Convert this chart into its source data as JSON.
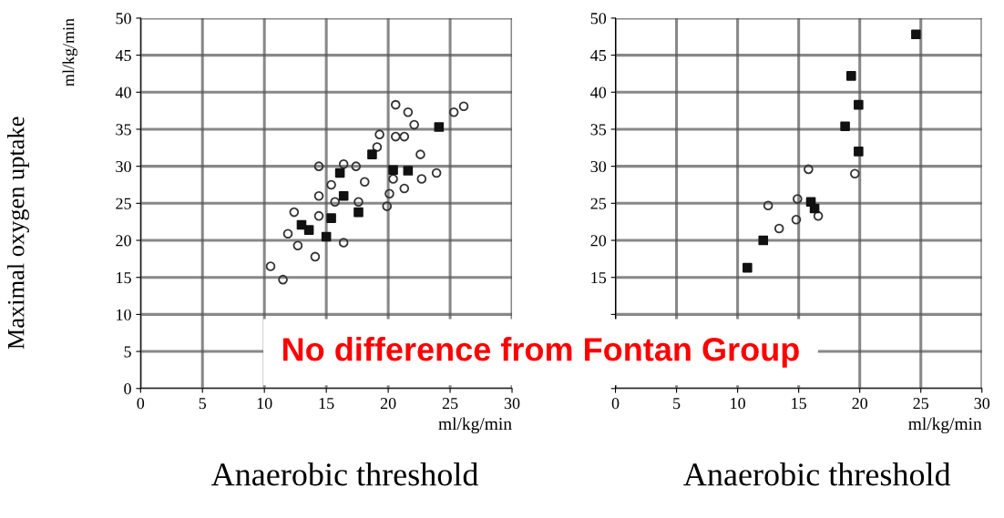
{
  "chart_data": [
    {
      "type": "scatter",
      "ylabel": "Maximal oxygen uptake",
      "xlabel": "ml/kg/min",
      "annotations": [
        "Anaerobic threshold",
        "ml/kg/min"
      ],
      "xlim": [
        0,
        30
      ],
      "xticks": [
        0,
        5,
        10,
        15,
        20,
        25,
        30
      ],
      "ylim": [
        0,
        50
      ],
      "yticks": [
        0,
        5,
        10,
        15,
        20,
        25,
        30,
        35,
        40,
        45,
        50
      ],
      "grid": true,
      "series": [
        {
          "marker": "circle",
          "color": "#333333",
          "x": [
            20.6,
            21.6,
            26.1,
            25.3,
            22.1,
            19.3,
            20.6,
            21.3,
            22.6,
            19.1,
            14.4,
            16.4,
            23.9,
            22.7,
            20.4,
            20.1,
            18.1,
            14.4,
            15.7,
            17.6,
            12.4,
            14.4,
            19.9,
            11.9,
            12.7,
            14.1,
            16.4,
            10.5,
            11.5,
            15.4,
            17.4,
            21.3
          ],
          "values": [
            38.3,
            37.3,
            38.1,
            37.3,
            35.6,
            34.3,
            34.0,
            34.0,
            31.6,
            32.6,
            30.0,
            30.3,
            29.1,
            28.3,
            28.3,
            26.3,
            27.9,
            26.0,
            25.2,
            25.2,
            23.8,
            23.3,
            24.6,
            20.9,
            19.3,
            17.8,
            19.7,
            16.5,
            14.7,
            27.5,
            30.0,
            27.0
          ]
        },
        {
          "marker": "square",
          "color": "#111111",
          "x": [
            24.1,
            18.7,
            21.6,
            16.1,
            16.4,
            17.6,
            13.6,
            15.0,
            15.4,
            13.0,
            20.4
          ],
          "values": [
            35.3,
            31.6,
            29.4,
            29.1,
            26.0,
            23.8,
            21.4,
            20.5,
            23.0,
            22.1,
            29.5
          ]
        }
      ]
    },
    {
      "type": "scatter",
      "xlabel": "ml/kg/min",
      "annotations": [
        "Anaerobic threshold",
        "No difference from Fontan Group"
      ],
      "xlim": [
        0,
        30
      ],
      "xticks": [
        0,
        5,
        10,
        15,
        20,
        25,
        30
      ],
      "ylim": [
        0,
        50
      ],
      "yticks": [
        {
          "value": 0,
          "label": null
        },
        {
          "value": 5,
          "label": null
        },
        {
          "value": 10,
          "label": null
        },
        15,
        20,
        25,
        30,
        35,
        40,
        45,
        50
      ],
      "grid": true,
      "series": [
        {
          "marker": "circle",
          "color": "#333333",
          "x": [
            15.8,
            19.6,
            12.5,
            14.9,
            14.8,
            13.4,
            16.6
          ],
          "values": [
            29.6,
            29.0,
            24.7,
            25.6,
            22.8,
            21.6,
            23.3
          ]
        },
        {
          "marker": "square",
          "color": "#111111",
          "x": [
            24.6,
            19.3,
            19.9,
            18.8,
            19.9,
            16.0,
            16.3,
            12.1,
            10.8
          ],
          "values": [
            47.8,
            42.2,
            38.3,
            35.4,
            32.0,
            25.2,
            24.3,
            20.0,
            16.3
          ]
        }
      ]
    }
  ]
}
